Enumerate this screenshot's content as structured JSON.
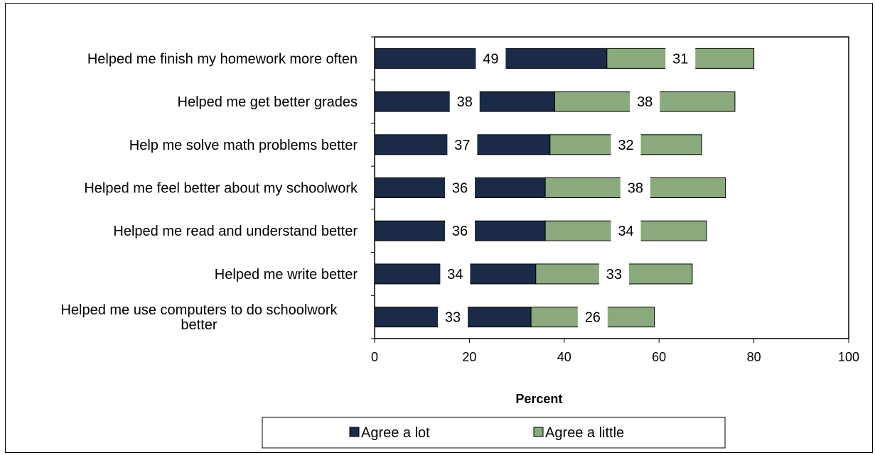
{
  "chart_data": {
    "type": "bar",
    "orientation": "horizontal",
    "stacked": true,
    "categories": [
      "Helped me finish my homework more often",
      "Helped me get better grades",
      "Help me solve math problems better",
      "Helped me feel better about my schoolwork",
      "Helped me read and understand better",
      "Helped me write better",
      "Helped me use computers to do schoolwork better"
    ],
    "series": [
      {
        "name": "Agree a lot",
        "color": "#1a2a47",
        "values": [
          49,
          38,
          37,
          36,
          36,
          34,
          33
        ]
      },
      {
        "name": "Agree a little",
        "color": "#8aaa7e",
        "values": [
          31,
          38,
          32,
          38,
          34,
          33,
          26
        ]
      }
    ],
    "xlabel": "Percent",
    "xlim": [
      0,
      100
    ],
    "xticks": [
      0,
      20,
      40,
      60,
      80,
      100
    ],
    "legend_position": "bottom",
    "grid": false
  }
}
